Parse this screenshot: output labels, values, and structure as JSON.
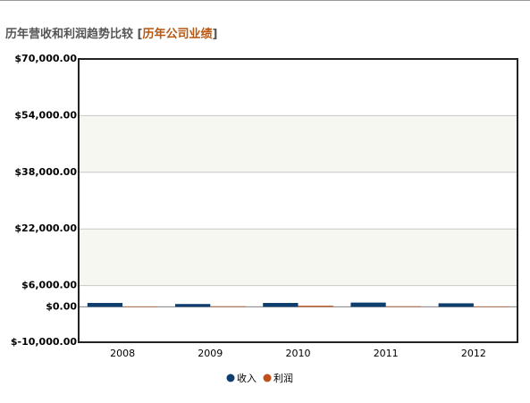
{
  "chart_data": {
    "type": "bar",
    "title": "历年营收和利润趋势比较",
    "bracket_open": "[",
    "subtitle": "历年公司业绩",
    "bracket_close": "]",
    "categories": [
      "2008",
      "2009",
      "2010",
      "2011",
      "2012"
    ],
    "series": [
      {
        "name": "收入",
        "color": "#0d3e6e",
        "values": [
          1100,
          800,
          1100,
          1200,
          1000
        ]
      },
      {
        "name": "利润",
        "color": "#c0501a",
        "values": [
          100,
          150,
          300,
          150,
          100
        ]
      }
    ],
    "ylim": [
      -10000,
      70000
    ],
    "yticks": [
      {
        "value": -10000,
        "label": "$-10,000.00"
      },
      {
        "value": 0,
        "label": "$0.00"
      },
      {
        "value": 6000,
        "label": "$6,000.00"
      },
      {
        "value": 22000,
        "label": "$22,000.00"
      },
      {
        "value": 38000,
        "label": "$38,000.00"
      },
      {
        "value": 54000,
        "label": "$54,000.00"
      },
      {
        "value": 70000,
        "label": "$70,000.00"
      }
    ],
    "grid": true,
    "legend": "bottom"
  }
}
